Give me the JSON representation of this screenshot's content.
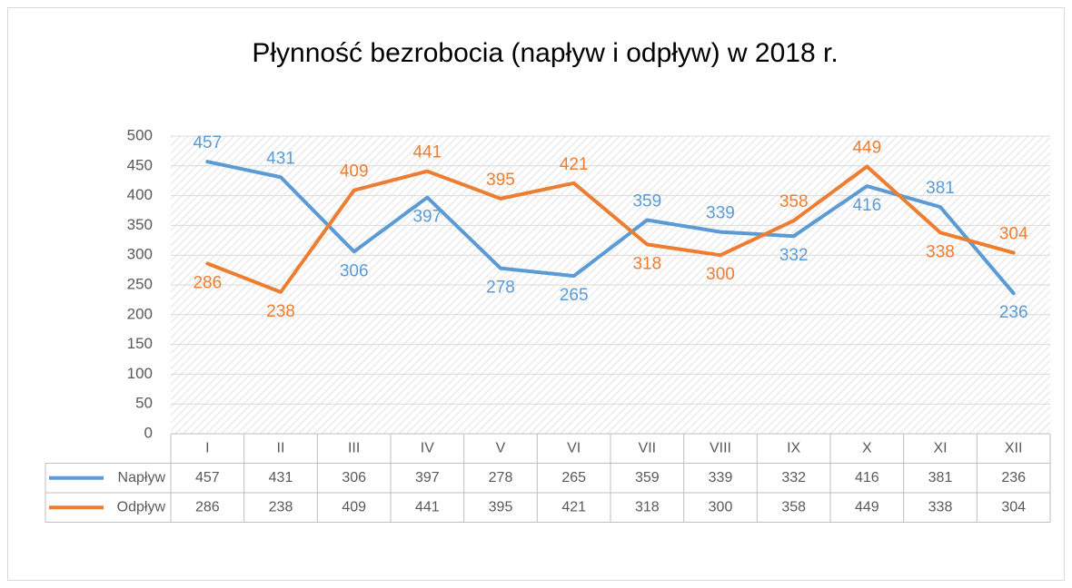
{
  "chart_data": {
    "type": "line",
    "title": "Płynność bezrobocia (napływ i odpływ) w 2018 r.",
    "categories": [
      "I",
      "II",
      "III",
      "IV",
      "V",
      "VI",
      "VII",
      "VIII",
      "IX",
      "X",
      "XI",
      "XII"
    ],
    "series": [
      {
        "name": "Napływ",
        "color": "#5b9bd5",
        "values": [
          457,
          431,
          306,
          397,
          278,
          265,
          359,
          339,
          332,
          416,
          381,
          236
        ]
      },
      {
        "name": "Odpływ",
        "color": "#ed7d31",
        "values": [
          286,
          238,
          409,
          441,
          395,
          421,
          318,
          300,
          358,
          449,
          338,
          304
        ]
      }
    ],
    "ylim": [
      0,
      500
    ],
    "yticks": [
      0,
      50,
      100,
      150,
      200,
      250,
      300,
      350,
      400,
      450,
      500
    ],
    "grid": true
  }
}
